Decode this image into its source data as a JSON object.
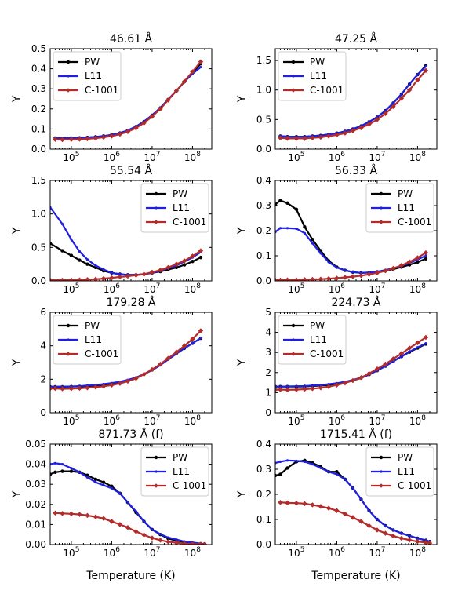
{
  "xlabel": "Temperature (K)",
  "x_ticks": [
    "10^5",
    "10^6",
    "10^7",
    "10^8"
  ],
  "colors": {
    "PW": "#000000",
    "L11": "#1f1fe0",
    "C-1001": "#b22c2c"
  },
  "chart_data": [
    {
      "type": "line",
      "title": "46.61 Å",
      "ylabel": "Y",
      "xscale": "log",
      "xlim": [
        30000,
        300000000
      ],
      "ylim": [
        0,
        0.5
      ],
      "yticks": [
        "0.0",
        "0.1",
        "0.2",
        "0.3",
        "0.4",
        "0.5"
      ],
      "legend": "upper-left",
      "x": [
        40000,
        60000,
        100000,
        160000,
        250000,
        400000,
        630000,
        1000000,
        1600000,
        2500000,
        4000000,
        6300000,
        10000000,
        16000000,
        25000000,
        40000000,
        63000000,
        100000000,
        160000000
      ],
      "series": [
        {
          "name": "PW",
          "values": [
            0.055,
            0.054,
            0.055,
            0.056,
            0.058,
            0.061,
            0.065,
            0.071,
            0.08,
            0.093,
            0.112,
            0.137,
            0.168,
            0.205,
            0.247,
            0.29,
            0.335,
            0.38,
            0.425
          ]
        },
        {
          "name": "L11",
          "values": [
            0.055,
            0.054,
            0.055,
            0.056,
            0.058,
            0.061,
            0.065,
            0.071,
            0.08,
            0.093,
            0.112,
            0.137,
            0.168,
            0.205,
            0.247,
            0.29,
            0.335,
            0.375,
            0.408
          ]
        },
        {
          "name": "C-1001",
          "values": [
            0.048,
            0.047,
            0.048,
            0.049,
            0.051,
            0.054,
            0.059,
            0.065,
            0.074,
            0.087,
            0.105,
            0.13,
            0.162,
            0.2,
            0.244,
            0.29,
            0.337,
            0.385,
            0.435
          ]
        }
      ]
    },
    {
      "type": "line",
      "title": "47.25 Å",
      "ylabel": "Y",
      "xscale": "log",
      "xlim": [
        30000,
        300000000
      ],
      "ylim": [
        0,
        1.7
      ],
      "yticks": [
        "0.0",
        "0.5",
        "1.0",
        "1.5"
      ],
      "legend": "upper-left",
      "x": [
        40000,
        60000,
        100000,
        160000,
        250000,
        400000,
        630000,
        1000000,
        1600000,
        2500000,
        4000000,
        6300000,
        10000000,
        16000000,
        25000000,
        40000000,
        63000000,
        100000000,
        160000000
      ],
      "series": [
        {
          "name": "PW",
          "values": [
            0.22,
            0.21,
            0.21,
            0.21,
            0.22,
            0.23,
            0.25,
            0.27,
            0.3,
            0.34,
            0.39,
            0.46,
            0.54,
            0.65,
            0.78,
            0.93,
            1.1,
            1.26,
            1.41
          ]
        },
        {
          "name": "L11",
          "values": [
            0.22,
            0.21,
            0.21,
            0.21,
            0.22,
            0.23,
            0.25,
            0.27,
            0.3,
            0.34,
            0.39,
            0.46,
            0.54,
            0.65,
            0.78,
            0.93,
            1.1,
            1.26,
            1.4
          ]
        },
        {
          "name": "C-1001",
          "values": [
            0.19,
            0.18,
            0.18,
            0.18,
            0.19,
            0.2,
            0.22,
            0.24,
            0.27,
            0.31,
            0.36,
            0.42,
            0.5,
            0.6,
            0.72,
            0.86,
            1.0,
            1.17,
            1.33
          ]
        }
      ]
    },
    {
      "type": "line",
      "title": "55.54 Å",
      "ylabel": "Y",
      "xscale": "log",
      "xlim": [
        30000,
        300000000
      ],
      "ylim": [
        0,
        1.5
      ],
      "yticks": [
        "0.0",
        "0.5",
        "1.0",
        "1.5"
      ],
      "legend": "upper-right",
      "x": [
        30000,
        60000,
        100000,
        160000,
        250000,
        400000,
        630000,
        1000000,
        1600000,
        2500000,
        4000000,
        6300000,
        10000000,
        16000000,
        25000000,
        40000000,
        63000000,
        100000000,
        160000000
      ],
      "series": [
        {
          "name": "PW",
          "values": [
            0.56,
            0.45,
            0.38,
            0.31,
            0.25,
            0.2,
            0.15,
            0.12,
            0.1,
            0.09,
            0.09,
            0.1,
            0.12,
            0.14,
            0.17,
            0.2,
            0.24,
            0.29,
            0.35
          ]
        },
        {
          "name": "L11",
          "values": [
            1.1,
            0.85,
            0.62,
            0.44,
            0.32,
            0.23,
            0.17,
            0.12,
            0.1,
            0.09,
            0.09,
            0.1,
            0.12,
            0.15,
            0.19,
            0.23,
            0.29,
            0.35,
            0.43
          ]
        },
        {
          "name": "C-1001",
          "values": [
            0.01,
            0.01,
            0.01,
            0.015,
            0.02,
            0.025,
            0.035,
            0.045,
            0.06,
            0.07,
            0.085,
            0.1,
            0.13,
            0.16,
            0.2,
            0.25,
            0.3,
            0.37,
            0.45
          ]
        }
      ]
    },
    {
      "type": "line",
      "title": "56.33 Å",
      "ylabel": "Y",
      "xscale": "log",
      "xlim": [
        30000,
        300000000
      ],
      "ylim": [
        0,
        0.4
      ],
      "yticks": [
        "0.0",
        "0.1",
        "0.2",
        "0.3",
        "0.4"
      ],
      "legend": "upper-right",
      "x": [
        30000,
        40000,
        60000,
        100000,
        160000,
        250000,
        400000,
        630000,
        1000000,
        1600000,
        2500000,
        4000000,
        6300000,
        10000000,
        16000000,
        25000000,
        40000000,
        63000000,
        100000000,
        160000000
      ],
      "series": [
        {
          "name": "PW",
          "values": [
            0.305,
            0.32,
            0.31,
            0.285,
            0.215,
            0.165,
            0.12,
            0.08,
            0.055,
            0.042,
            0.035,
            0.032,
            0.033,
            0.036,
            0.041,
            0.047,
            0.055,
            0.064,
            0.075,
            0.088
          ]
        },
        {
          "name": "L11",
          "values": [
            0.195,
            0.21,
            0.21,
            0.208,
            0.19,
            0.15,
            0.11,
            0.075,
            0.053,
            0.042,
            0.035,
            0.032,
            0.033,
            0.037,
            0.043,
            0.05,
            0.06,
            0.072,
            0.085,
            0.1
          ]
        },
        {
          "name": "C-1001",
          "values": [
            0.003,
            0.003,
            0.004,
            0.004,
            0.005,
            0.006,
            0.007,
            0.009,
            0.011,
            0.014,
            0.017,
            0.021,
            0.026,
            0.032,
            0.04,
            0.05,
            0.062,
            0.076,
            0.092,
            0.112
          ]
        }
      ]
    },
    {
      "type": "line",
      "title": "179.28 Å",
      "ylabel": "Y",
      "xscale": "log",
      "xlim": [
        30000,
        300000000
      ],
      "ylim": [
        0,
        6
      ],
      "yticks": [
        "0",
        "2",
        "4",
        "6"
      ],
      "legend": "upper-left",
      "x": [
        30000,
        40000,
        60000,
        100000,
        160000,
        250000,
        400000,
        630000,
        1000000,
        1600000,
        2500000,
        4000000,
        6300000,
        10000000,
        16000000,
        25000000,
        40000000,
        63000000,
        100000000,
        160000000
      ],
      "series": [
        {
          "name": "PW",
          "values": [
            1.55,
            1.55,
            1.55,
            1.56,
            1.57,
            1.59,
            1.62,
            1.66,
            1.72,
            1.8,
            1.92,
            2.08,
            2.3,
            2.56,
            2.86,
            3.2,
            3.55,
            3.85,
            4.15,
            4.45
          ]
        },
        {
          "name": "L11",
          "values": [
            1.55,
            1.55,
            1.56,
            1.57,
            1.59,
            1.62,
            1.66,
            1.71,
            1.77,
            1.85,
            1.96,
            2.1,
            2.3,
            2.54,
            2.84,
            3.18,
            3.52,
            3.85,
            4.15,
            4.45
          ]
        },
        {
          "name": "C-1001",
          "values": [
            1.45,
            1.45,
            1.43,
            1.44,
            1.46,
            1.49,
            1.53,
            1.58,
            1.65,
            1.75,
            1.88,
            2.05,
            2.3,
            2.58,
            2.9,
            3.25,
            3.62,
            4.0,
            4.4,
            4.9
          ]
        }
      ]
    },
    {
      "type": "line",
      "title": "224.73 Å",
      "ylabel": "Y",
      "xscale": "log",
      "xlim": [
        30000,
        300000000
      ],
      "ylim": [
        0,
        5
      ],
      "yticks": [
        "0",
        "1",
        "2",
        "3",
        "4",
        "5"
      ],
      "legend": "upper-left",
      "x": [
        30000,
        40000,
        60000,
        100000,
        160000,
        250000,
        400000,
        630000,
        1000000,
        1600000,
        2500000,
        4000000,
        6300000,
        10000000,
        16000000,
        25000000,
        40000000,
        63000000,
        100000000,
        160000000
      ],
      "series": [
        {
          "name": "PW",
          "values": [
            1.3,
            1.3,
            1.3,
            1.3,
            1.31,
            1.33,
            1.35,
            1.38,
            1.43,
            1.5,
            1.6,
            1.73,
            1.9,
            2.1,
            2.32,
            2.56,
            2.8,
            3.02,
            3.22,
            3.42
          ]
        },
        {
          "name": "L11",
          "values": [
            1.3,
            1.3,
            1.31,
            1.32,
            1.33,
            1.35,
            1.38,
            1.42,
            1.47,
            1.54,
            1.63,
            1.75,
            1.9,
            2.1,
            2.32,
            2.56,
            2.8,
            3.04,
            3.25,
            3.45
          ]
        },
        {
          "name": "C-1001",
          "values": [
            1.15,
            1.15,
            1.14,
            1.15,
            1.17,
            1.2,
            1.24,
            1.3,
            1.38,
            1.48,
            1.6,
            1.75,
            1.95,
            2.18,
            2.42,
            2.68,
            2.95,
            3.22,
            3.48,
            3.75
          ]
        }
      ]
    },
    {
      "type": "line",
      "title": "871.73 Å (f)",
      "ylabel": "Y",
      "xscale": "log",
      "xlim": [
        30000,
        300000000
      ],
      "ylim": [
        0,
        0.05
      ],
      "yticks": [
        "0.00",
        "0.01",
        "0.02",
        "0.03",
        "0.04",
        "0.05"
      ],
      "legend": "upper-right",
      "x": [
        30000,
        40000,
        60000,
        100000,
        160000,
        250000,
        400000,
        630000,
        1000000,
        1600000,
        2500000,
        4000000,
        6300000,
        10000000,
        16000000,
        25000000,
        40000000,
        63000000,
        100000000,
        160000000,
        200000000
      ],
      "series": [
        {
          "name": "PW",
          "values": [
            0.035,
            0.036,
            0.0365,
            0.0365,
            0.036,
            0.0345,
            0.0325,
            0.031,
            0.029,
            0.0255,
            0.021,
            0.016,
            0.0115,
            0.0075,
            0.005,
            0.003,
            0.002,
            0.0012,
            0.0008,
            0.0004,
            0.0003
          ]
        },
        {
          "name": "L11",
          "values": [
            0.04,
            0.0405,
            0.04,
            0.038,
            0.036,
            0.0335,
            0.031,
            0.0295,
            0.028,
            0.0255,
            0.021,
            0.0165,
            0.0115,
            0.0075,
            0.0052,
            0.0035,
            0.0025,
            0.0015,
            0.001,
            0.0005,
            0.0003
          ]
        },
        {
          "name": "C-1001",
          "values": [
            null,
            0.0157,
            0.0155,
            0.0153,
            0.015,
            0.0145,
            0.0138,
            0.013,
            0.0115,
            0.01,
            0.0085,
            0.0065,
            0.0048,
            0.0033,
            0.0022,
            0.0014,
            0.0009,
            0.0005,
            0.0003,
            0.0002,
            0.0001
          ]
        }
      ]
    },
    {
      "type": "line",
      "title": "1715.41 Å (f)",
      "ylabel": "Y",
      "xscale": "log",
      "xlim": [
        30000,
        300000000
      ],
      "ylim": [
        0,
        0.4
      ],
      "yticks": [
        "0.0",
        "0.1",
        "0.2",
        "0.3",
        "0.4"
      ],
      "legend": "upper-right",
      "x": [
        30000,
        40000,
        60000,
        100000,
        160000,
        250000,
        400000,
        630000,
        1000000,
        1600000,
        2500000,
        4000000,
        6300000,
        10000000,
        16000000,
        25000000,
        40000000,
        63000000,
        100000000,
        160000000,
        200000000
      ],
      "series": [
        {
          "name": "PW",
          "values": [
            0.275,
            0.28,
            0.305,
            0.33,
            0.335,
            0.325,
            0.31,
            0.29,
            0.29,
            0.26,
            0.225,
            0.18,
            0.135,
            0.1,
            0.075,
            0.058,
            0.045,
            0.035,
            0.025,
            0.017,
            0.012
          ]
        },
        {
          "name": "L11",
          "values": [
            0.325,
            0.33,
            0.335,
            0.333,
            0.33,
            0.32,
            0.305,
            0.29,
            0.28,
            0.26,
            0.225,
            0.18,
            0.135,
            0.1,
            0.075,
            0.058,
            0.045,
            0.035,
            0.025,
            0.017,
            0.012
          ]
        },
        {
          "name": "C-1001",
          "values": [
            null,
            0.168,
            0.166,
            0.165,
            0.163,
            0.158,
            0.152,
            0.145,
            0.135,
            0.122,
            0.108,
            0.092,
            0.075,
            0.058,
            0.045,
            0.034,
            0.025,
            0.018,
            0.012,
            0.008,
            0.006
          ]
        }
      ]
    }
  ]
}
